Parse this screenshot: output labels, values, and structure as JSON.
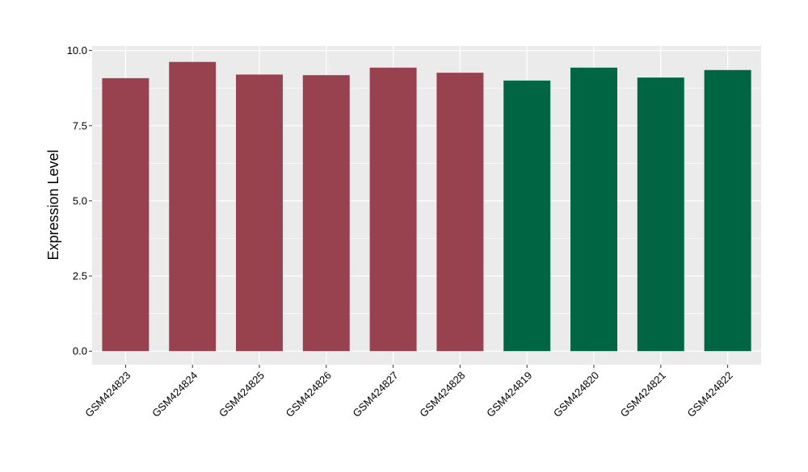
{
  "chart_data": {
    "type": "bar",
    "title": "",
    "xlabel": "",
    "ylabel": "Expression Level",
    "ylim": [
      -0.45,
      10.15
    ],
    "yticks": [
      0.0,
      2.5,
      5.0,
      7.5,
      10.0
    ],
    "ytick_labels": [
      "0.0",
      "2.5",
      "5.0",
      "7.5",
      "10.0"
    ],
    "grid": true,
    "categories": [
      "GSM424823",
      "GSM424824",
      "GSM424825",
      "GSM424826",
      "GSM424827",
      "GSM424828",
      "GSM424819",
      "GSM424820",
      "GSM424821",
      "GSM424822"
    ],
    "values": [
      9.08,
      9.62,
      9.2,
      9.18,
      9.43,
      9.26,
      9.0,
      9.43,
      9.1,
      9.35
    ],
    "bar_colors": [
      "#99424f",
      "#99424f",
      "#99424f",
      "#99424f",
      "#99424f",
      "#99424f",
      "#006543",
      "#006543",
      "#006543",
      "#006543"
    ],
    "panel_background": "#ebebeb",
    "grid_color": "#ffffff"
  }
}
